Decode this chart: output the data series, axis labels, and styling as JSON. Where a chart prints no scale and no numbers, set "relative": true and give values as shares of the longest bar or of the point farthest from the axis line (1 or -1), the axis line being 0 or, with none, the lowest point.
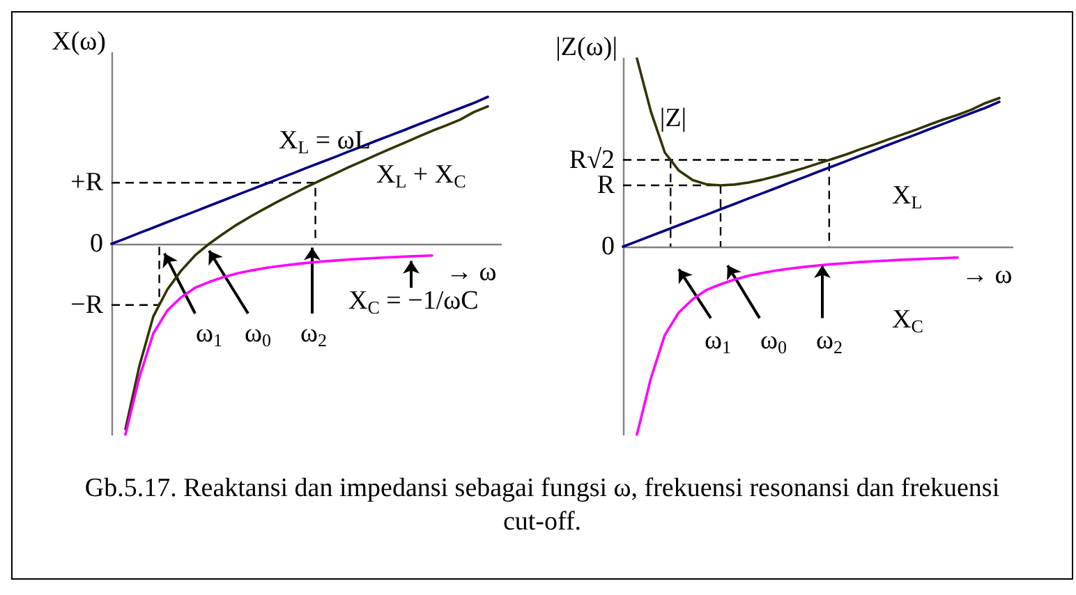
{
  "chart_data": [
    {
      "type": "line",
      "xlabel": "→ ω",
      "ylabel": "X(ω)",
      "relative": true,
      "marker": "none",
      "line_style": "solid",
      "categories": [
        null,
        null,
        null,
        null,
        null,
        null,
        null,
        null,
        null,
        null,
        null,
        null,
        null,
        null,
        null,
        null,
        null,
        null,
        null,
        null,
        null,
        null,
        null,
        null,
        null,
        null,
        null,
        null
      ],
      "series": [
        {
          "name": "X$_{L}$ + X$_{C}$",
          "color": "#333300",
          "values": [
            null,
            -0.97,
            -0.64,
            -0.38,
            -0.24,
            -0.14,
            -0.06,
            0,
            0.052,
            0.101,
            0.144,
            0.185,
            0.224,
            0.261,
            0.298,
            0.333,
            0.366,
            0.401,
            0.433,
            0.466,
            0.498,
            0.529,
            0.561,
            0.592,
            0.62,
            0.65,
            0.69,
            0.72
          ]
        },
        {
          "name": "X$_{L}$ = ωL",
          "color": "#000080",
          "values": [
            0,
            0.028,
            0.057,
            0.085,
            0.114,
            0.142,
            0.17,
            0.199,
            0.227,
            0.256,
            0.284,
            0.312,
            0.341,
            0.369,
            0.398,
            0.426,
            0.454,
            0.483,
            0.511,
            0.54,
            0.568,
            0.596,
            0.625,
            0.653,
            0.682,
            0.71,
            0.738,
            0.77
          ]
        },
        {
          "name": "X$_{C}$ = −1/ωC",
          "color": "#ff00ff",
          "values": [
            null,
            -1,
            -0.7,
            -0.47,
            -0.35,
            -0.28,
            -0.23,
            -0.2,
            -0.175,
            -0.155,
            -0.14,
            -0.127,
            -0.117,
            -0.108,
            -0.1,
            -0.093,
            -0.088,
            -0.082,
            -0.078,
            -0.074,
            -0.07,
            -0.067,
            -0.064,
            -0.061,
            null,
            null,
            null,
            null
          ]
        }
      ],
      "ref_lines": [
        {
          "axis": "y",
          "value": 0,
          "label": "0",
          "line_style": "solid",
          "color": "#808080"
        },
        {
          "axis": "y",
          "value": 0.32,
          "label": "+R",
          "line_style": "dashed",
          "color": "#000000"
        },
        {
          "axis": "y",
          "value": -0.32,
          "label": "−R",
          "line_style": "dashed",
          "color": "#000000"
        }
      ],
      "annotations": [
        "ω$_{1}$",
        "ω$_{0}$",
        "ω$_{2}$",
        "Gb.5.17. Reaktansi dan impedansi sebagai fungsi ω, frekuensi resonansi dan frekuensi cut-off."
      ]
    },
    {
      "type": "line",
      "xlabel": "→ ω",
      "ylabel": "|Z(ω)|",
      "relative": true,
      "marker": "none",
      "line_style": "solid",
      "categories": [
        null,
        null,
        null,
        null,
        null,
        null,
        null,
        null,
        null,
        null,
        null,
        null,
        null,
        null,
        null,
        null,
        null,
        null,
        null,
        null,
        null,
        null,
        null,
        null,
        null,
        null,
        null,
        null
      ],
      "series": [
        {
          "name": "|Z|",
          "color": "#333300",
          "values": [
            null,
            1,
            0.718,
            0.5,
            0.405,
            0.354,
            0.331,
            0.326,
            0.33,
            0.341,
            0.356,
            0.375,
            0.396,
            0.418,
            0.442,
            0.466,
            0.49,
            0.517,
            0.542,
            0.569,
            0.595,
            0.621,
            0.649,
            0.676,
            0.7,
            0.728,
            0.763,
            0.79
          ]
        },
        {
          "name": "X$_{L}$",
          "color": "#000080",
          "values": [
            0,
            0.028,
            0.057,
            0.085,
            0.114,
            0.142,
            0.17,
            0.199,
            0.227,
            0.256,
            0.284,
            0.312,
            0.341,
            0.369,
            0.398,
            0.426,
            0.454,
            0.483,
            0.511,
            0.54,
            0.568,
            0.596,
            0.625,
            0.653,
            0.682,
            0.71,
            0.738,
            0.77
          ]
        },
        {
          "name": "X$_{C}$",
          "color": "#ff00ff",
          "values": [
            null,
            -1,
            -0.7,
            -0.47,
            -0.35,
            -0.28,
            -0.23,
            -0.2,
            -0.175,
            -0.155,
            -0.14,
            -0.127,
            -0.117,
            -0.108,
            -0.1,
            -0.093,
            -0.088,
            -0.082,
            -0.078,
            -0.074,
            -0.07,
            -0.067,
            -0.064,
            -0.061,
            -0.058,
            null,
            null,
            null
          ]
        }
      ],
      "ref_lines": [
        {
          "axis": "y",
          "value": 0,
          "label": "0",
          "line_style": "solid",
          "color": "#808080"
        },
        {
          "axis": "y",
          "value": 0.461,
          "label": "R√2",
          "line_style": "dashed",
          "color": "#000000"
        },
        {
          "axis": "y",
          "value": 0.326,
          "label": "R",
          "line_style": "dashed",
          "color": "#000000"
        }
      ],
      "annotations": [
        "ω$_{1}$",
        "ω$_{0}$",
        "ω$_{2}$"
      ]
    }
  ]
}
